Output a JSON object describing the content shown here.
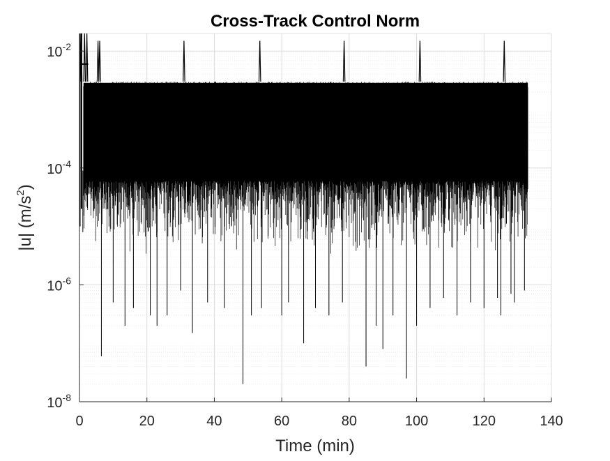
{
  "chart_data": {
    "type": "line",
    "title": "Cross-Track Control Norm",
    "xlabel": "Time (min)",
    "ylabel_main": "|u| (m/s",
    "ylabel_sup": "2",
    "ylabel_close": ")",
    "xlim": [
      0,
      140
    ],
    "ylim": [
      1e-08,
      0.02
    ],
    "yscale": "log",
    "grid": true,
    "minor_grid": true,
    "x_ticks": [
      {
        "value": 0,
        "label": "0"
      },
      {
        "value": 20,
        "label": "20"
      },
      {
        "value": 40,
        "label": "40"
      },
      {
        "value": 60,
        "label": "60"
      },
      {
        "value": 80,
        "label": "80"
      },
      {
        "value": 100,
        "label": "100"
      },
      {
        "value": 120,
        "label": "120"
      },
      {
        "value": 140,
        "label": "140"
      }
    ],
    "y_ticks": [
      {
        "value": 1e-08,
        "base": "10",
        "exp": "-8"
      },
      {
        "value": 1e-06,
        "base": "10",
        "exp": "-6"
      },
      {
        "value": 0.0001,
        "base": "10",
        "exp": "-4"
      },
      {
        "value": 0.01,
        "base": "10",
        "exp": "-2"
      }
    ],
    "series": [
      {
        "color": "#000000",
        "x_end": 133,
        "band_upper": 0.003,
        "band_lower": 3e-05,
        "spikes_up": [
          {
            "x": 0.5,
            "y": 0.02
          },
          {
            "x": 1.5,
            "y": 0.02
          },
          {
            "x": 2.2,
            "y": 0.02
          },
          {
            "x": 5.5,
            "y": 0.015
          },
          {
            "x": 6.0,
            "y": 0.015
          },
          {
            "x": 31,
            "y": 0.015
          },
          {
            "x": 53.5,
            "y": 0.015
          },
          {
            "x": 78.5,
            "y": 0.015
          },
          {
            "x": 101,
            "y": 0.015
          },
          {
            "x": 126,
            "y": 0.015
          }
        ],
        "dips": [
          {
            "x": 1,
            "y": 8e-06
          },
          {
            "x": 6.5,
            "y": 6e-08
          },
          {
            "x": 10,
            "y": 5e-07
          },
          {
            "x": 13.5,
            "y": 2e-07
          },
          {
            "x": 16,
            "y": 4e-07
          },
          {
            "x": 21,
            "y": 3e-07
          },
          {
            "x": 23,
            "y": 2e-07
          },
          {
            "x": 26,
            "y": 3e-07
          },
          {
            "x": 30,
            "y": 8e-07
          },
          {
            "x": 33.5,
            "y": 1.5e-07
          },
          {
            "x": 38,
            "y": 5e-07
          },
          {
            "x": 43,
            "y": 4e-07
          },
          {
            "x": 48.5,
            "y": 2e-08
          },
          {
            "x": 51,
            "y": 3e-07
          },
          {
            "x": 54,
            "y": 4e-07
          },
          {
            "x": 60,
            "y": 3e-07
          },
          {
            "x": 62,
            "y": 5e-07
          },
          {
            "x": 66.5,
            "y": 1e-07
          },
          {
            "x": 70,
            "y": 4e-07
          },
          {
            "x": 74,
            "y": 3e-07
          },
          {
            "x": 78,
            "y": 5e-07
          },
          {
            "x": 85,
            "y": 4e-08
          },
          {
            "x": 88,
            "y": 2e-07
          },
          {
            "x": 90,
            "y": 8e-08
          },
          {
            "x": 93,
            "y": 3e-07
          },
          {
            "x": 97,
            "y": 2.5e-08
          },
          {
            "x": 100,
            "y": 2e-07
          },
          {
            "x": 104,
            "y": 4e-07
          },
          {
            "x": 108,
            "y": 6e-07
          },
          {
            "x": 112,
            "y": 3e-07
          },
          {
            "x": 116,
            "y": 5e-07
          },
          {
            "x": 120,
            "y": 4e-07
          },
          {
            "x": 124,
            "y": 6e-07
          },
          {
            "x": 125,
            "y": 3e-07
          },
          {
            "x": 128,
            "y": 7e-07
          },
          {
            "x": 129,
            "y": 5e-07
          },
          {
            "x": 132,
            "y": 8e-07
          }
        ]
      }
    ]
  }
}
